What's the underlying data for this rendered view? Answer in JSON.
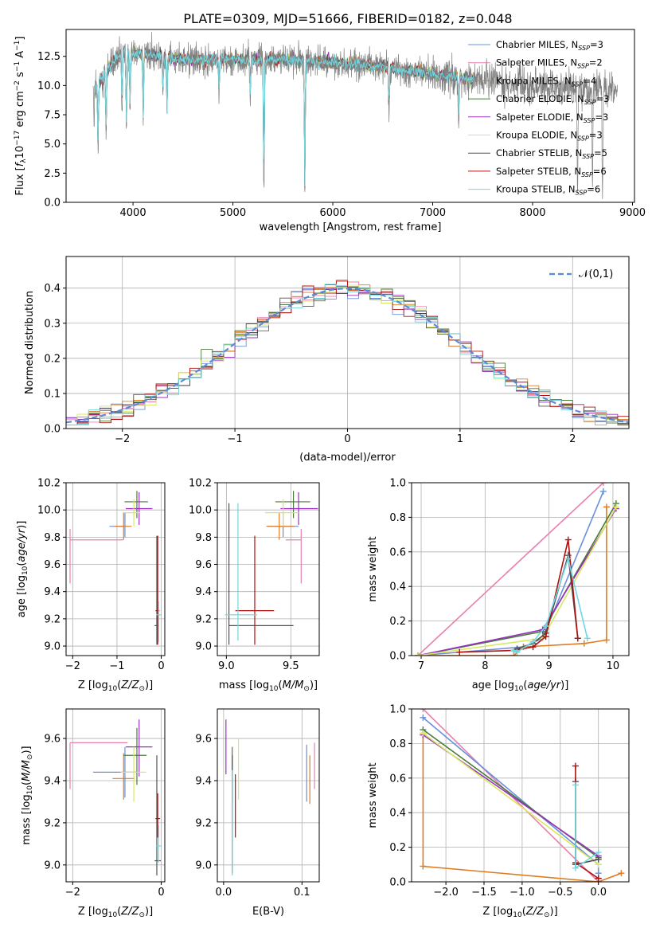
{
  "figure_title": "PLATE=0309, MJD=51666, FIBERID=0182, z=0.048",
  "colors": {
    "Chabrier MILES": "#6a8fdc",
    "Salpeter MILES": "#e87fb0",
    "Kroupa MILES": "#e07b20",
    "Chabrier ELODIE": "#4a7a3a",
    "Salpeter ELODIE": "#9a30c0",
    "Kroupa ELODIE": "#d8e860",
    "Chabrier STELIB": "#505050",
    "Salpeter STELIB": "#b01010",
    "Kroupa STELIB": "#70d8e0",
    "data": "#808080",
    "normal": "#5b8bd6"
  },
  "chart_data": [
    {
      "id": "spectrum",
      "type": "line",
      "title": "PLATE=0309, MJD=51666, FIBERID=0182, z=0.048",
      "xlabel": "wavelength [Angstrom, rest frame]",
      "ylabel": "Flux [f_λ 10^-17 erg cm^-2 s^-1 A^-1]",
      "xlim": [
        3330,
        9020
      ],
      "ylim": [
        0,
        14.8
      ],
      "xticks": [
        4000,
        5000,
        6000,
        7000,
        8000,
        9000
      ],
      "yticks": [
        0.0,
        2.5,
        5.0,
        7.5,
        10.0,
        12.5
      ],
      "legend_position": "upper-right",
      "legend": [
        {
          "name": "Chabrier MILES",
          "nssp": "3"
        },
        {
          "name": "Salpeter MILES",
          "nssp": "2"
        },
        {
          "name": "Kroupa MILES",
          "nssp": "4"
        },
        {
          "name": "Chabrier ELODIE",
          "nssp": "3"
        },
        {
          "name": "Salpeter ELODIE",
          "nssp": "3"
        },
        {
          "name": "Kroupa ELODIE",
          "nssp": "3"
        },
        {
          "name": "Chabrier STELIB",
          "nssp": "5"
        },
        {
          "name": "Salpeter STELIB",
          "nssp": "6"
        },
        {
          "name": "Kroupa STELIB",
          "nssp": "6"
        }
      ],
      "data_range": [
        3600,
        8850
      ],
      "model_range": [
        3620,
        7410
      ],
      "continuum": [
        [
          3600,
          9.5
        ],
        [
          3750,
          11.5
        ],
        [
          3900,
          12.8
        ],
        [
          4100,
          12.8
        ],
        [
          4500,
          12.2
        ],
        [
          5000,
          12.2
        ],
        [
          5500,
          12.2
        ],
        [
          6000,
          12.0
        ],
        [
          6500,
          11.6
        ],
        [
          7000,
          11.0
        ],
        [
          7500,
          10.4
        ],
        [
          8000,
          10.0
        ],
        [
          8500,
          9.7
        ],
        [
          8850,
          9.5
        ]
      ],
      "absorption_features": [
        [
          3610,
          3.0
        ],
        [
          3650,
          6.0
        ],
        [
          3700,
          1.0
        ],
        [
          3730,
          6.0
        ],
        [
          3890,
          5.0
        ],
        [
          3934,
          7.0
        ],
        [
          3970,
          5.0
        ],
        [
          4102,
          6.0
        ],
        [
          4300,
          3.0
        ],
        [
          4340,
          5.0
        ],
        [
          4861,
          3.0
        ],
        [
          5174,
          3.0
        ],
        [
          5310,
          12.0
        ],
        [
          5720,
          12.0
        ],
        [
          6563,
          4.0
        ],
        [
          7260,
          4.0
        ],
        [
          8450,
          9.0
        ],
        [
          8600,
          8.0
        ],
        [
          8700,
          9.0
        ]
      ]
    },
    {
      "id": "residuals",
      "type": "histogram",
      "xlabel": "(data-model)/error",
      "ylabel": "Normed distribution",
      "xlim": [
        -2.5,
        2.5
      ],
      "ylim": [
        0,
        0.49
      ],
      "xticks": [
        -2,
        -1,
        0,
        1,
        2
      ],
      "yticks": [
        0.0,
        0.1,
        0.2,
        0.3,
        0.4
      ],
      "grid": true,
      "legend_position": "upper-right",
      "normal_label": "𝒩(0,1)"
    },
    {
      "id": "z-age",
      "type": "errorbar",
      "xlabel": "Z [log10(Z/Z⊙)]",
      "ylabel": "age [log10(age/yr)]",
      "xlim": [
        -2.15,
        0.08
      ],
      "ylim": [
        8.93,
        10.2
      ],
      "xticks": [
        -2,
        -1,
        0
      ],
      "yticks": [
        9.0,
        9.2,
        9.4,
        9.6,
        9.8,
        10.0,
        10.2
      ],
      "grid": true,
      "points": [
        {
          "model": "Chabrier MILES",
          "x": -0.82,
          "y": 9.88,
          "xerr": [
            0.35,
            0.0
          ],
          "yerr": [
            0.08,
            0.1
          ]
        },
        {
          "model": "Salpeter MILES",
          "x": -2.06,
          "y": 9.78,
          "xerr": [
            0.0,
            1.2
          ],
          "yerr": [
            0.32,
            0.08
          ]
        },
        {
          "model": "Kroupa MILES",
          "x": -0.85,
          "y": 9.88,
          "xerr": [
            0.2,
            0.18
          ],
          "yerr": [
            0.1,
            0.1
          ]
        },
        {
          "model": "Chabrier ELODIE",
          "x": -0.55,
          "y": 10.06,
          "xerr": [
            0.28,
            0.25
          ],
          "yerr": [
            0.12,
            0.08
          ]
        },
        {
          "model": "Salpeter ELODIE",
          "x": -0.5,
          "y": 10.01,
          "xerr": [
            0.3,
            0.3
          ],
          "yerr": [
            0.12,
            0.12
          ]
        },
        {
          "model": "Kroupa ELODIE",
          "x": -0.62,
          "y": 9.98,
          "xerr": [
            0.25,
            0.15
          ],
          "yerr": [
            0.1,
            0.1
          ]
        },
        {
          "model": "Chabrier STELIB",
          "x": -0.1,
          "y": 9.15,
          "xerr": [
            0.05,
            0.05
          ],
          "yerr": [
            0.14,
            0.66
          ]
        },
        {
          "model": "Salpeter STELIB",
          "x": -0.08,
          "y": 9.26,
          "xerr": [
            0.05,
            0.04
          ],
          "yerr": [
            0.25,
            0.55
          ]
        },
        {
          "model": "Kroupa STELIB",
          "x": -0.06,
          "y": 9.23,
          "xerr": [
            0.05,
            0.06
          ],
          "yerr": [
            0.2,
            0.1
          ]
        }
      ]
    },
    {
      "id": "mass-age",
      "type": "errorbar",
      "xlabel": "mass [log10(M/M⊙)]",
      "ylabel": "",
      "xlim": [
        8.93,
        9.72
      ],
      "ylim": [
        8.93,
        10.2
      ],
      "xticks": [
        9.0,
        9.5
      ],
      "yticks": [
        9.0,
        9.2,
        9.4,
        9.6,
        9.8,
        10.0,
        10.2
      ],
      "grid": true,
      "points": [
        {
          "model": "Chabrier MILES",
          "x": 9.44,
          "y": 9.88,
          "xerr": [
            0.12,
            0.12
          ],
          "yerr": [
            0.08,
            0.1
          ]
        },
        {
          "model": "Salpeter MILES",
          "x": 9.58,
          "y": 9.78,
          "xerr": [
            0.12,
            0.0
          ],
          "yerr": [
            0.32,
            0.08
          ]
        },
        {
          "model": "Kroupa MILES",
          "x": 9.41,
          "y": 9.88,
          "xerr": [
            0.1,
            0.12
          ],
          "yerr": [
            0.1,
            0.1
          ]
        },
        {
          "model": "Chabrier ELODIE",
          "x": 9.52,
          "y": 10.06,
          "xerr": [
            0.14,
            0.13
          ],
          "yerr": [
            0.12,
            0.08
          ]
        },
        {
          "model": "Salpeter ELODIE",
          "x": 9.56,
          "y": 10.01,
          "xerr": [
            0.14,
            0.15
          ],
          "yerr": [
            0.12,
            0.12
          ]
        },
        {
          "model": "Kroupa ELODIE",
          "x": 9.44,
          "y": 9.98,
          "xerr": [
            0.14,
            0.12
          ],
          "yerr": [
            0.1,
            0.1
          ]
        },
        {
          "model": "Chabrier STELIB",
          "x": 9.02,
          "y": 9.15,
          "xerr": [
            0.0,
            0.5
          ],
          "yerr": [
            0.14,
            0.9
          ]
        },
        {
          "model": "Salpeter STELIB",
          "x": 9.22,
          "y": 9.26,
          "xerr": [
            0.15,
            0.15
          ],
          "yerr": [
            0.25,
            0.55
          ]
        },
        {
          "model": "Kroupa STELIB",
          "x": 9.09,
          "y": 9.23,
          "xerr": [
            0.1,
            0.15
          ],
          "yerr": [
            0.19,
            0.82
          ]
        }
      ]
    },
    {
      "id": "age-weight",
      "type": "line",
      "xlabel": "age [log10(age/yr)]",
      "ylabel": "mass weight",
      "xlim": [
        6.85,
        10.25
      ],
      "ylim": [
        0,
        1.0
      ],
      "xticks": [
        7,
        8,
        9,
        10
      ],
      "yticks": [
        0.0,
        0.2,
        0.4,
        0.6,
        0.8,
        1.0
      ],
      "grid": true,
      "series": [
        {
          "model": "Salpeter MILES",
          "x": [
            6.95,
            9.85
          ],
          "y": [
            0.0,
            1.0
          ]
        },
        {
          "model": "Chabrier MILES",
          "x": [
            6.95,
            8.6,
            8.9,
            9.85
          ],
          "y": [
            0.0,
            0.05,
            0.1,
            0.95
          ]
        },
        {
          "model": "Kroupa MILES",
          "x": [
            6.95,
            8.45,
            8.6,
            9.55,
            9.9,
            9.9
          ],
          "y": [
            0.0,
            0.0,
            0.05,
            0.07,
            0.09,
            0.86
          ]
        },
        {
          "model": "Chabrier ELODIE",
          "x": [
            6.95,
            8.9,
            10.05
          ],
          "y": [
            0.0,
            0.14,
            0.88
          ]
        },
        {
          "model": "Salpeter ELODIE",
          "x": [
            6.95,
            8.9,
            10.05
          ],
          "y": [
            0.0,
            0.15,
            0.85
          ]
        },
        {
          "model": "Kroupa ELODIE",
          "x": [
            6.95,
            8.9,
            10.05
          ],
          "y": [
            0.0,
            0.1,
            0.86
          ]
        },
        {
          "model": "Chabrier STELIB",
          "x": [
            8.45,
            8.5,
            8.75,
            8.95,
            9.3,
            9.45
          ],
          "y": [
            0.03,
            0.04,
            0.07,
            0.13,
            0.58,
            0.1
          ]
        },
        {
          "model": "Salpeter STELIB",
          "x": [
            7.6,
            8.45,
            8.75,
            8.95,
            9.3,
            9.45
          ],
          "y": [
            0.02,
            0.03,
            0.05,
            0.11,
            0.67,
            0.1
          ]
        },
        {
          "model": "Kroupa STELIB",
          "x": [
            8.45,
            8.5,
            8.75,
            8.95,
            9.3,
            9.6
          ],
          "y": [
            0.03,
            0.02,
            0.08,
            0.17,
            0.56,
            0.1
          ]
        }
      ]
    },
    {
      "id": "z-mass",
      "type": "errorbar",
      "xlabel": "Z [log10(Z/Z⊙)]",
      "ylabel": "mass [log10(M/M⊙)]",
      "xlim": [
        -2.15,
        0.08
      ],
      "ylim": [
        8.92,
        9.74
      ],
      "xticks": [
        -2,
        0
      ],
      "yticks": [
        9.0,
        9.2,
        9.4,
        9.6
      ],
      "grid": true,
      "points": [
        {
          "model": "Chabrier MILES",
          "x": -0.82,
          "y": 9.44,
          "xerr": [
            0.72,
            0.3
          ],
          "yerr": [
            0.12,
            0.12
          ]
        },
        {
          "model": "Salpeter MILES",
          "x": -2.06,
          "y": 9.58,
          "xerr": [
            0.0,
            1.3
          ],
          "yerr": [
            0.22,
            0.0
          ]
        },
        {
          "model": "Kroupa MILES",
          "x": -0.85,
          "y": 9.41,
          "xerr": [
            0.25,
            0.25
          ],
          "yerr": [
            0.1,
            0.12
          ]
        },
        {
          "model": "Chabrier ELODIE",
          "x": -0.55,
          "y": 9.52,
          "xerr": [
            0.3,
            0.22
          ],
          "yerr": [
            0.14,
            0.13
          ]
        },
        {
          "model": "Salpeter ELODIE",
          "x": -0.5,
          "y": 9.56,
          "xerr": [
            0.3,
            0.3
          ],
          "yerr": [
            0.14,
            0.13
          ]
        },
        {
          "model": "Kroupa ELODIE",
          "x": -0.62,
          "y": 9.44,
          "xerr": [
            0.3,
            0.28
          ],
          "yerr": [
            0.14,
            0.12
          ]
        },
        {
          "model": "Chabrier STELIB",
          "x": -0.1,
          "y": 9.02,
          "xerr": [
            0.05,
            0.09
          ],
          "yerr": [
            0.07,
            0.5
          ]
        },
        {
          "model": "Salpeter STELIB",
          "x": -0.08,
          "y": 9.22,
          "xerr": [
            0.05,
            0.05
          ],
          "yerr": [
            0.09,
            0.12
          ]
        },
        {
          "model": "Kroupa STELIB",
          "x": -0.06,
          "y": 9.09,
          "xerr": [
            0.06,
            0.06
          ],
          "yerr": [
            0.08,
            0.1
          ]
        }
      ]
    },
    {
      "id": "ebv-mass",
      "type": "errorbar",
      "xlabel": "E(B-V)",
      "ylabel": "",
      "xlim": [
        -0.008,
        0.122
      ],
      "ylim": [
        8.92,
        9.74
      ],
      "xticks": [
        0.0,
        0.1
      ],
      "yticks": [
        9.0,
        9.2,
        9.4,
        9.6
      ],
      "grid": true,
      "points": [
        {
          "model": "Chabrier MILES",
          "x": 0.106,
          "y": 9.44,
          "yerr": [
            0.14,
            0.13
          ]
        },
        {
          "model": "Salpeter MILES",
          "x": 0.116,
          "y": 9.47,
          "yerr": [
            0.11,
            0.11
          ]
        },
        {
          "model": "Kroupa MILES",
          "x": 0.11,
          "y": 9.41,
          "yerr": [
            0.12,
            0.11
          ]
        },
        {
          "model": "Chabrier ELODIE",
          "x": 0.011,
          "y": 9.44,
          "yerr": [
            0.14,
            0.12
          ]
        },
        {
          "model": "Salpeter ELODIE",
          "x": 0.003,
          "y": 9.56,
          "yerr": [
            0.13,
            0.13
          ]
        },
        {
          "model": "Kroupa ELODIE",
          "x": 0.019,
          "y": 9.44,
          "yerr": [
            0.13,
            0.16
          ]
        },
        {
          "model": "Chabrier STELIB",
          "x": 0.011,
          "y": 9.3,
          "yerr": [
            0.34,
            0.22
          ]
        },
        {
          "model": "Salpeter STELIB",
          "x": 0.015,
          "y": 9.28,
          "yerr": [
            0.15,
            0.15
          ]
        },
        {
          "model": "Kroupa STELIB",
          "x": 0.011,
          "y": 9.25,
          "yerr": [
            0.3,
            0.2
          ]
        }
      ]
    },
    {
      "id": "z-weight",
      "type": "line",
      "xlabel": "Z [log10(Z/Z⊙)]",
      "ylabel": "mass weight",
      "xlim": [
        -2.45,
        0.4
      ],
      "ylim": [
        0,
        1.0
      ],
      "xticks": [
        -2.0,
        -1.5,
        -1.0,
        -0.5,
        0.0
      ],
      "yticks": [
        0.0,
        0.2,
        0.4,
        0.6,
        0.8,
        1.0
      ],
      "grid": true,
      "series": [
        {
          "model": "Salpeter MILES",
          "x": [
            -2.3,
            0.0
          ],
          "y": [
            1.0,
            0.0
          ]
        },
        {
          "model": "Chabrier MILES",
          "x": [
            -2.3,
            0.0,
            0.0
          ],
          "y": [
            0.95,
            0.1,
            0.05
          ]
        },
        {
          "model": "Kroupa MILES",
          "x": [
            -2.3,
            -2.3,
            0.0,
            0.3
          ],
          "y": [
            0.86,
            0.09,
            0.0,
            0.05
          ]
        },
        {
          "model": "Chabrier ELODIE",
          "x": [
            -2.3,
            0.0
          ],
          "y": [
            0.88,
            0.14
          ]
        },
        {
          "model": "Salpeter ELODIE",
          "x": [
            -2.3,
            0.0
          ],
          "y": [
            0.85,
            0.15
          ]
        },
        {
          "model": "Kroupa ELODIE",
          "x": [
            -2.3,
            0.0
          ],
          "y": [
            0.86,
            0.1
          ]
        },
        {
          "model": "Chabrier STELIB",
          "x": [
            -0.3,
            -0.3,
            0.0
          ],
          "y": [
            0.58,
            0.1,
            0.13
          ]
        },
        {
          "model": "Salpeter STELIB",
          "x": [
            -0.3,
            -0.3,
            0.0,
            0.0
          ],
          "y": [
            0.67,
            0.11,
            0.02,
            0.02
          ]
        },
        {
          "model": "Kroupa STELIB",
          "x": [
            -0.3,
            -0.3,
            0.0
          ],
          "y": [
            0.56,
            0.08,
            0.17
          ]
        }
      ]
    }
  ]
}
